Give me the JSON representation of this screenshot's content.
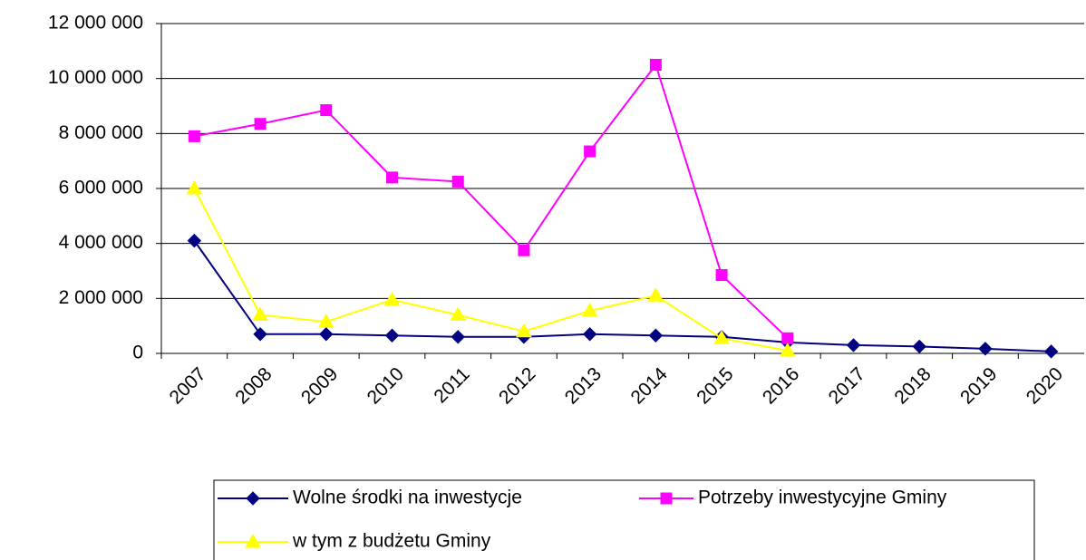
{
  "chart_data": {
    "type": "line",
    "categories": [
      "2007",
      "2008",
      "2009",
      "2010",
      "2011",
      "2012",
      "2013",
      "2014",
      "2015",
      "2016",
      "2017",
      "2018",
      "2019",
      "2020"
    ],
    "series": [
      {
        "name": "Wolne środki na inwestycje",
        "color": "#000080",
        "marker": "diamond",
        "values": [
          4100000,
          700000,
          700000,
          650000,
          600000,
          600000,
          700000,
          650000,
          600000,
          400000,
          300000,
          250000,
          170000,
          70000
        ]
      },
      {
        "name": "Potrzeby inwestycyjne Gminy",
        "color": "#ff00ff",
        "marker": "square",
        "values": [
          7900000,
          8350000,
          8850000,
          6400000,
          6250000,
          3750000,
          7350000,
          10500000,
          2850000,
          550000,
          null,
          null,
          null,
          null
        ]
      },
      {
        "name": "w tym z budżetu Gminy",
        "color": "#ffff00",
        "marker": "triangle",
        "values": [
          6000000,
          1400000,
          1150000,
          1950000,
          1400000,
          800000,
          1550000,
          2100000,
          550000,
          100000,
          null,
          null,
          null,
          null
        ]
      }
    ],
    "ylim": [
      0,
      12000000
    ],
    "yticks": [
      0,
      {
        "value": 2000000,
        "label": "2 000 000"
      },
      {
        "value": 4000000,
        "label": "4 000 000"
      },
      {
        "value": 6000000,
        "label": "6 000 000"
      },
      {
        "value": 8000000,
        "label": "8 000 000"
      },
      {
        "value": 10000000,
        "label": "10 000 000"
      },
      {
        "value": 12000000,
        "label": "12 000 000"
      }
    ],
    "grid": true,
    "legend": "bottom"
  }
}
